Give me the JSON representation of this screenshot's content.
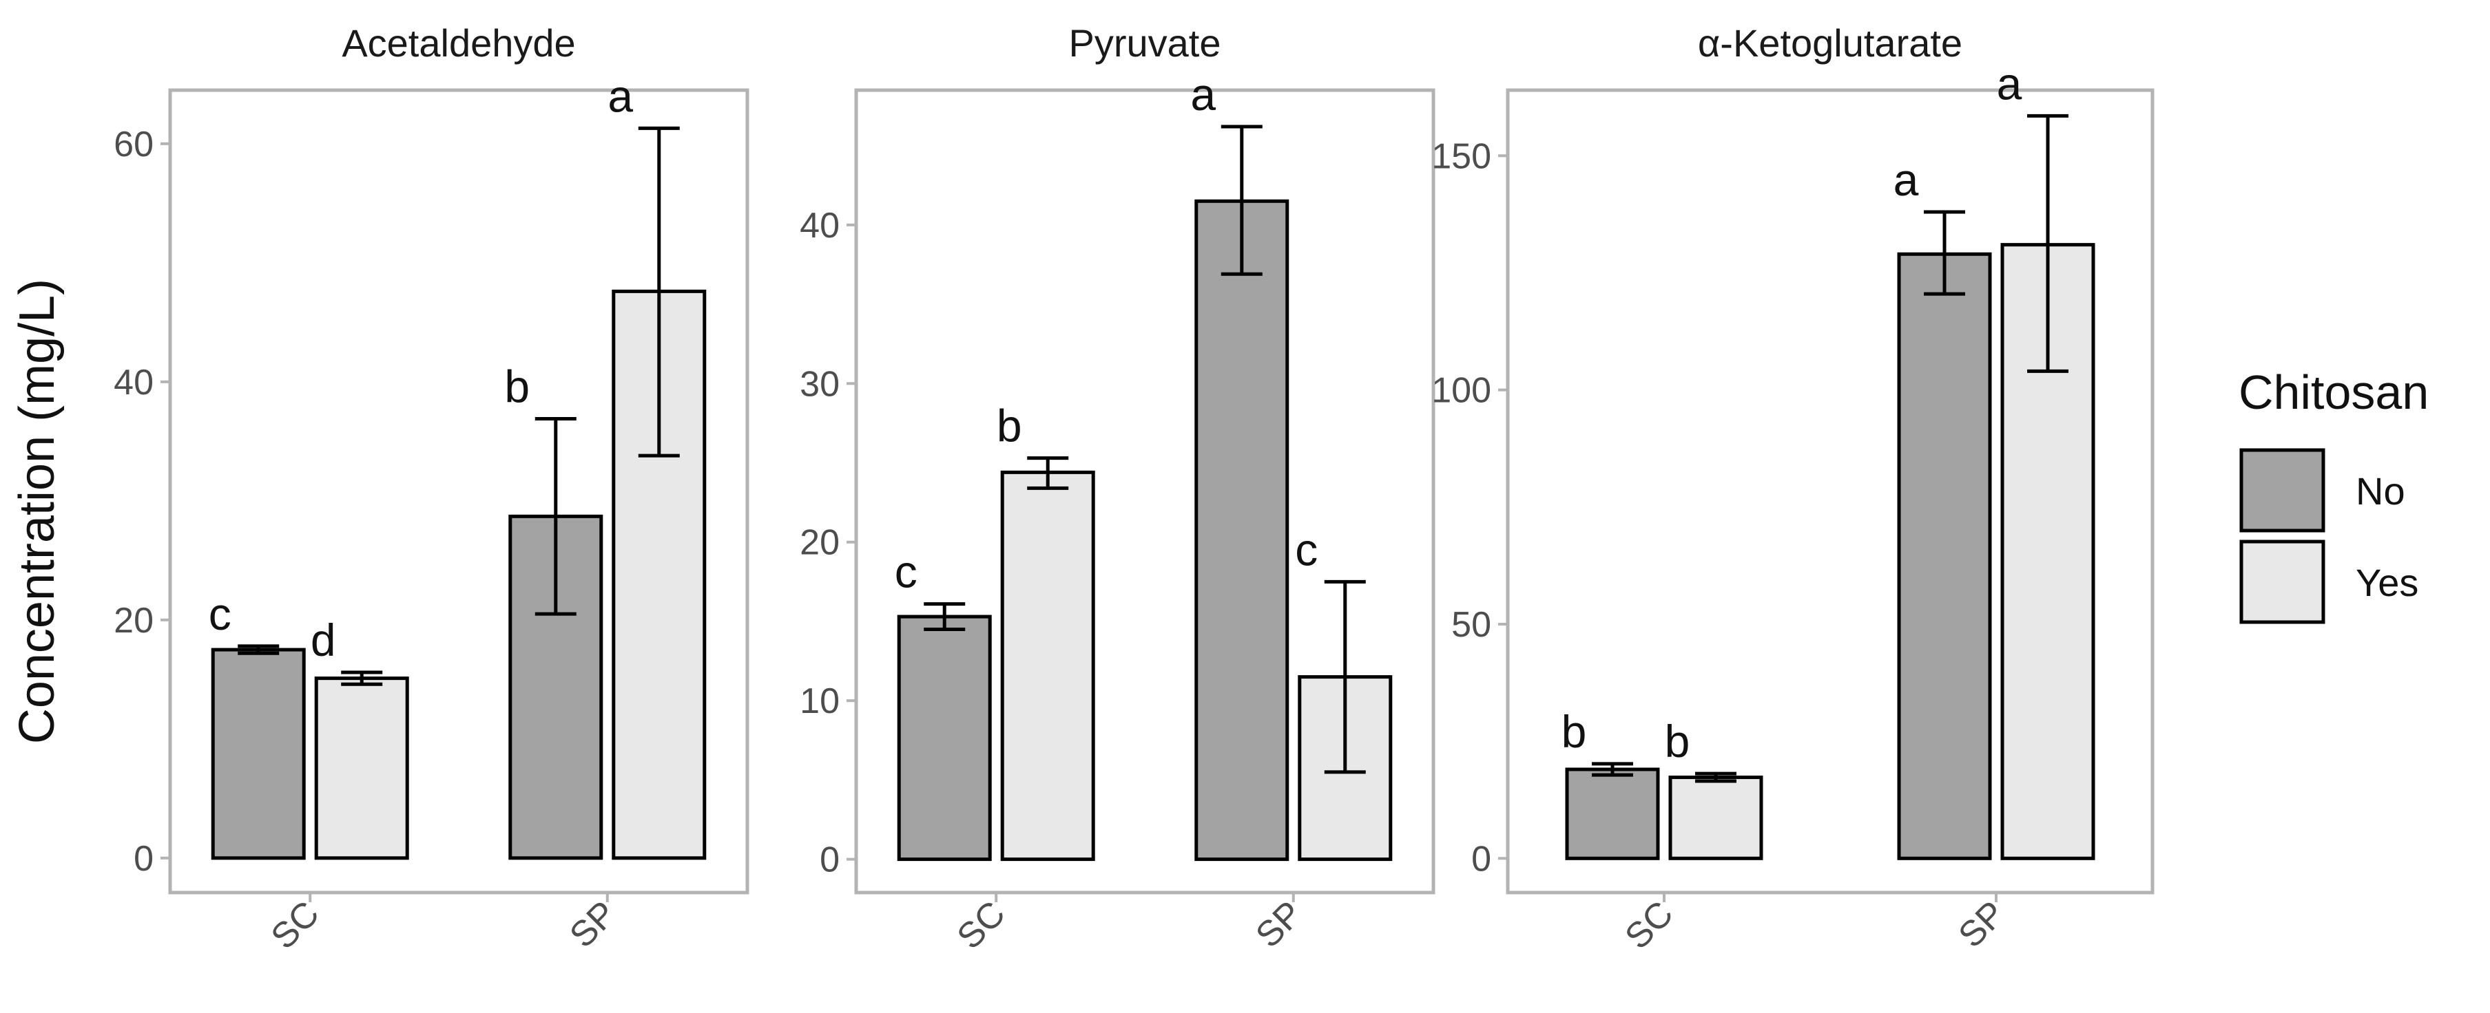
{
  "chart_data": {
    "type": "bar",
    "ylabel": "Concentration (mg/L)",
    "xlabel": "",
    "categories": [
      "SC",
      "SP"
    ],
    "legend": {
      "title": "Chitosan",
      "position": "right",
      "entries": [
        {
          "name": "No",
          "color": "#a3a3a3"
        },
        {
          "name": "Yes",
          "color": "#e8e8e8"
        }
      ]
    },
    "facets": [
      {
        "title": "Acetaldehyde",
        "ylim": [
          -2.9,
          64.5
        ],
        "yticks": [
          0,
          20,
          40,
          60
        ],
        "series": [
          {
            "name": "No",
            "values": [
              17.5,
              28.7
            ],
            "error_low": [
              17.2,
              20.5
            ],
            "error_high": [
              17.8,
              36.9
            ],
            "labels": [
              "c",
              "b"
            ]
          },
          {
            "name": "Yes",
            "values": [
              15.1,
              47.6
            ],
            "error_low": [
              14.6,
              33.8
            ],
            "error_high": [
              15.6,
              61.3
            ],
            "labels": [
              "d",
              "a"
            ]
          }
        ]
      },
      {
        "title": "Pyruvate",
        "ylim": [
          -2.1,
          48.5
        ],
        "yticks": [
          0,
          10,
          20,
          30,
          40
        ],
        "series": [
          {
            "name": "No",
            "values": [
              15.3,
              41.5
            ],
            "error_low": [
              14.5,
              36.9
            ],
            "error_high": [
              16.1,
              46.2
            ],
            "labels": [
              "c",
              "a"
            ]
          },
          {
            "name": "Yes",
            "values": [
              24.4,
              11.5
            ],
            "error_low": [
              23.4,
              5.5
            ],
            "error_high": [
              25.3,
              17.5
            ],
            "labels": [
              "b",
              "c"
            ]
          }
        ]
      },
      {
        "title": "α-Ketoglutarate",
        "ylim": [
          -7.3,
          164.0
        ],
        "yticks": [
          0,
          50,
          100,
          150
        ],
        "series": [
          {
            "name": "No",
            "values": [
              19.0,
              129.0
            ],
            "error_low": [
              17.8,
              120.5
            ],
            "error_high": [
              20.2,
              138.0
            ],
            "labels": [
              "b",
              "a"
            ]
          },
          {
            "name": "Yes",
            "values": [
              17.3,
              131.0
            ],
            "error_low": [
              16.5,
              104.0
            ],
            "error_high": [
              18.1,
              158.5
            ],
            "labels": [
              "b",
              "a"
            ]
          }
        ]
      }
    ]
  }
}
